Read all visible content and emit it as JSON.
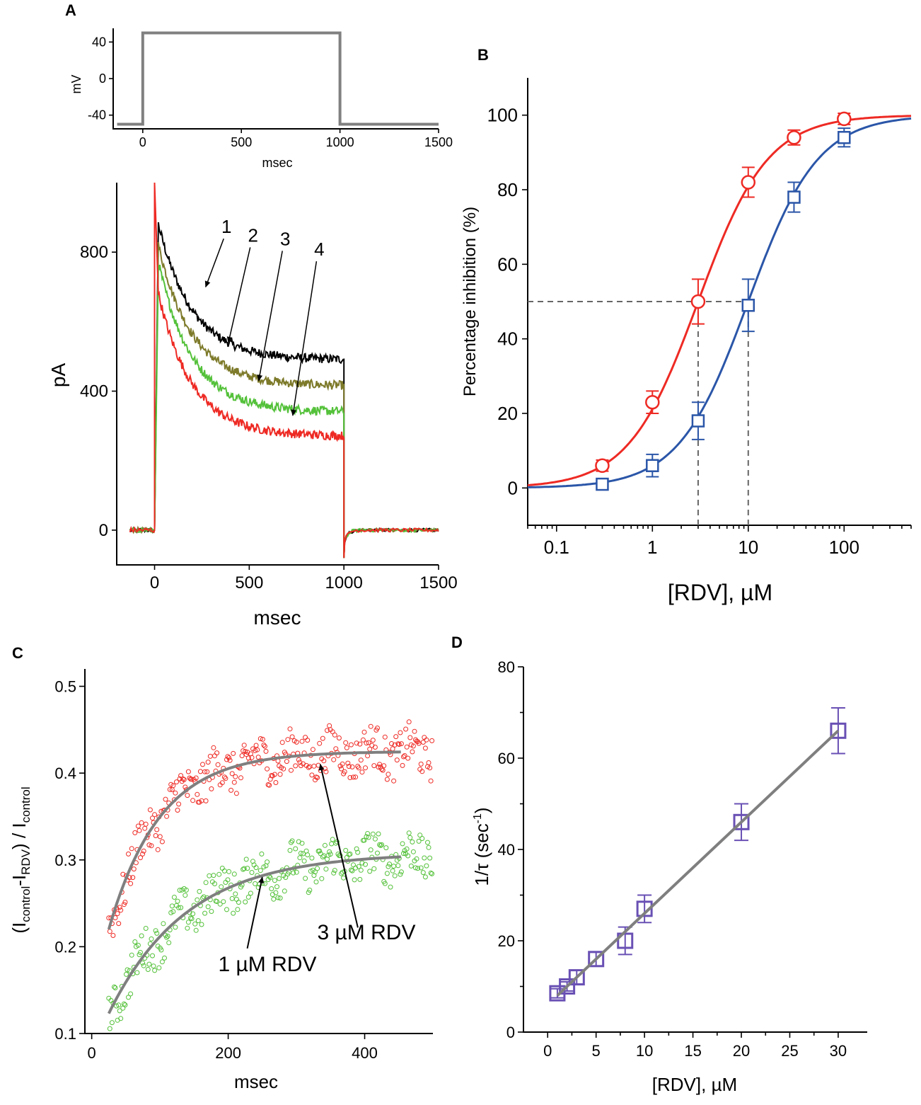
{
  "colors": {
    "red": "#ee2a24",
    "blue": "#2b56a8",
    "black": "#000000",
    "olive": "#7d7a2a",
    "green": "#54c13a",
    "gray": "#808080",
    "purple": "#6950b4",
    "fitgray": "#7f7f7f"
  },
  "chart_data": [
    {
      "id": "A-protocol",
      "panel_label": "A",
      "type": "line",
      "title": "",
      "xlabel": "msec",
      "ylabel": "mV",
      "xlim": [
        -150,
        1500
      ],
      "ylim": [
        -55,
        55
      ],
      "xticks": [
        0,
        500,
        1000,
        1500
      ],
      "yticks": [
        40,
        0,
        -40
      ],
      "series": [
        {
          "name": "voltage step",
          "color": "#808080",
          "x": [
            -130,
            0,
            0,
            1000,
            1000,
            1500
          ],
          "y": [
            -50,
            -50,
            50,
            50,
            -50,
            -50
          ]
        }
      ]
    },
    {
      "id": "A-current",
      "type": "line",
      "xlabel": "msec",
      "ylabel": "pA",
      "xlim": [
        -200,
        1500
      ],
      "ylim": [
        -100,
        1000
      ],
      "xticks": [
        0,
        500,
        1000,
        1500
      ],
      "yticks": [
        0,
        400,
        800
      ],
      "series": [
        {
          "name": "1",
          "color": "#000000",
          "peak": 880,
          "end": 490
        },
        {
          "name": "2",
          "color": "#7d7a2a",
          "peak": 820,
          "end": 415
        },
        {
          "name": "3",
          "color": "#54c13a",
          "peak": 770,
          "end": 340
        },
        {
          "name": "4",
          "color": "#ee2a24",
          "peak": 680,
          "end": 270
        }
      ],
      "annotations": [
        {
          "label": "1",
          "text_at": [
            380,
            855
          ],
          "arrow_to": [
            270,
            700
          ]
        },
        {
          "label": "2",
          "text_at": [
            520,
            830
          ],
          "arrow_to": [
            390,
            540
          ]
        },
        {
          "label": "3",
          "text_at": [
            690,
            820
          ],
          "arrow_to": [
            550,
            430
          ]
        },
        {
          "label": "4",
          "text_at": [
            870,
            790
          ],
          "arrow_to": [
            730,
            330
          ]
        }
      ]
    },
    {
      "id": "B",
      "panel_label": "B",
      "type": "scatter",
      "xlabel": "[RDV], µM",
      "ylabel": "Percentage inhibition (%)",
      "xscale": "log",
      "xlim": [
        0.05,
        500
      ],
      "ylim": [
        -10,
        110
      ],
      "xticks": [
        0.1,
        1,
        10,
        100
      ],
      "yticks": [
        0,
        20,
        40,
        60,
        80,
        100
      ],
      "series": [
        {
          "name": "red",
          "color": "#ee2a24",
          "marker": "circle",
          "x": [
            0.3,
            1,
            3,
            10,
            30,
            100
          ],
          "y": [
            6,
            23,
            50,
            82,
            94,
            99
          ],
          "err": [
            1.5,
            3,
            6,
            4,
            2,
            1.5
          ],
          "fit": {
            "ic50": 3,
            "hill": 1.2
          }
        },
        {
          "name": "blue",
          "color": "#2b56a8",
          "marker": "square",
          "x": [
            0.3,
            1,
            3,
            10,
            30,
            100
          ],
          "y": [
            1,
            6,
            18,
            49,
            78,
            94
          ],
          "err": [
            1.5,
            3,
            5,
            7,
            4,
            2.5
          ],
          "fit": {
            "ic50": 10,
            "hill": 1.2
          }
        }
      ],
      "reference_lines": [
        {
          "y": 50,
          "x_drop": [
            3,
            10
          ]
        }
      ]
    },
    {
      "id": "C",
      "panel_label": "C",
      "type": "scatter",
      "xlabel": "msec",
      "ylabel_parts": [
        "(I",
        "control",
        "-I",
        "RDV",
        ") / I",
        "control"
      ],
      "xlim": [
        -10,
        500
      ],
      "ylim": [
        0.1,
        0.52
      ],
      "xticks": [
        0,
        200,
        400
      ],
      "yticks": [
        0.1,
        0.2,
        0.3,
        0.4,
        0.5
      ],
      "series": [
        {
          "name": "3 µM RDV",
          "color": "#ee2a24",
          "fit": {
            "a": 0.425,
            "b": 0.205,
            "tau": 75,
            "x0": 25,
            "x1": 455
          }
        },
        {
          "name": "1 µM RDV",
          "color": "#54c13a",
          "fit": {
            "a": 0.308,
            "b": 0.185,
            "tau": 115,
            "x0": 25,
            "x1": 455
          }
        }
      ],
      "annotations": [
        {
          "label": "3 µM RDV",
          "text_at": [
            405,
            0.205
          ],
          "arrow_to": [
            335,
            0.41
          ],
          "arrow_from": [
            390,
            0.222
          ]
        },
        {
          "label": "1 µM RDV",
          "text_at": [
            215,
            0.178
          ],
          "arrow_to": [
            250,
            0.28
          ],
          "arrow_from": [
            228,
            0.198
          ]
        }
      ]
    },
    {
      "id": "D",
      "panel_label": "D",
      "type": "scatter",
      "xlabel": "[RDV], µM",
      "ylabel": "1/τ (sec⁻¹)",
      "xlim": [
        -2.5,
        33
      ],
      "ylim": [
        0,
        80
      ],
      "xticks": [
        0,
        5,
        10,
        15,
        20,
        25,
        30
      ],
      "yticks": [
        0,
        20,
        40,
        60,
        80
      ],
      "series": [
        {
          "name": "rate",
          "color": "#6950b4",
          "x": [
            1,
            2,
            3,
            5,
            8,
            10,
            20,
            30
          ],
          "y": [
            8.5,
            10,
            12,
            16,
            20,
            27,
            46,
            66
          ],
          "err": [
            1,
            1,
            1.5,
            1.5,
            3,
            3,
            4,
            5
          ]
        }
      ],
      "fit": {
        "x": [
          1,
          30
        ],
        "y": [
          8,
          66
        ]
      }
    }
  ],
  "texts": {
    "A": "A",
    "B": "B",
    "C": "C",
    "D": "D",
    "a_top_xlabel": "msec",
    "a_top_ylabel": "mV",
    "a_xlabel": "msec",
    "a_ylabel": "pA",
    "b_xlabel": "[RDV], µM",
    "b_ylabel": "Percentage inhibition (%)",
    "c_xlabel": "msec",
    "d_xlabel": "[RDV], µM",
    "c_lab3": "3 µM RDV",
    "c_lab1": "1 µM RDV",
    "d_ylabel_main": "1/τ (sec",
    "d_ylabel_sup": "-1",
    "d_ylabel_end": ")",
    "c_yl1": "(I",
    "c_yl2": "control",
    "c_yl3": "-I",
    "c_yl4": "RDV",
    "c_yl5": ") / I",
    "c_yl6": "control"
  }
}
